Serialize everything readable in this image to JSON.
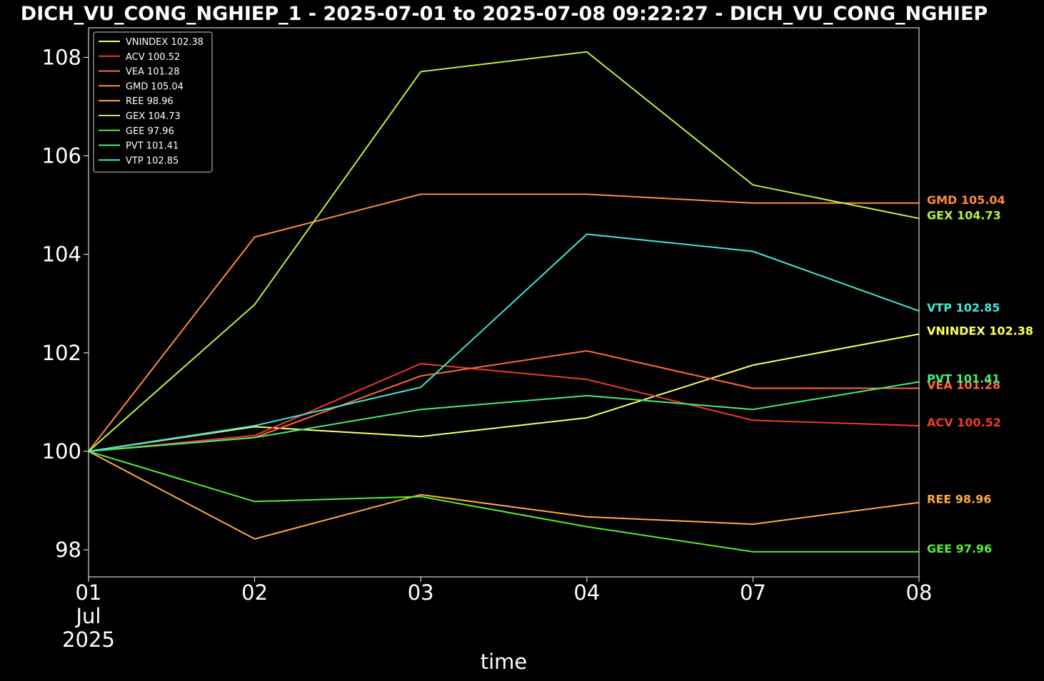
{
  "chart_data": {
    "type": "line",
    "title": "DICH_VU_CONG_NGHIEP_1 - 2025-07-01 to 2025-07-08 09:22:27 - DICH_VU_CONG_NGHIEP",
    "xlabel": "time",
    "ylabel": "",
    "x": [
      "2025-07-01",
      "2025-07-02",
      "2025-07-03",
      "2025-07-04",
      "2025-07-07",
      "2025-07-08"
    ],
    "x_tick_labels": [
      {
        "day": "01",
        "month": "Jul",
        "year": "2025"
      },
      {
        "day": "02"
      },
      {
        "day": "03"
      },
      {
        "day": "04"
      },
      {
        "day": "07"
      },
      {
        "day": "08"
      }
    ],
    "y_ticks": [
      "98",
      "100",
      "102",
      "104",
      "106",
      "108"
    ],
    "ylim": [
      97.45,
      108.6
    ],
    "grid": false,
    "legend_position": "top-left",
    "series": [
      {
        "name": "VNINDEX",
        "last_label": "VNINDEX 102.38",
        "color": "#ffff66",
        "values": [
          100.0,
          100.5,
          100.3,
          100.68,
          101.75,
          102.38
        ]
      },
      {
        "name": "ACV",
        "last_label": "ACV 100.52",
        "color": "#ee3a2a",
        "values": [
          100.0,
          100.32,
          101.78,
          101.46,
          100.63,
          100.52
        ]
      },
      {
        "name": "VEA",
        "last_label": "VEA 101.28",
        "color": "#ff6a3a",
        "values": [
          100.0,
          100.28,
          101.53,
          102.04,
          101.28,
          101.28
        ]
      },
      {
        "name": "GMD",
        "last_label": "GMD 105.04",
        "color": "#ff8c3a",
        "values": [
          100.0,
          104.35,
          105.22,
          105.22,
          105.04,
          105.04
        ]
      },
      {
        "name": "REE",
        "last_label": "REE 98.96",
        "color": "#ffaa44",
        "values": [
          100.0,
          98.22,
          99.12,
          98.67,
          98.52,
          98.96
        ]
      },
      {
        "name": "GEX",
        "last_label": "GEX 104.73",
        "color": "#b8f040",
        "values": [
          100.0,
          102.98,
          107.71,
          108.11,
          105.41,
          104.73
        ]
      },
      {
        "name": "GEE",
        "last_label": "GEE 97.96",
        "color": "#55ee33",
        "values": [
          100.0,
          98.98,
          99.08,
          98.47,
          97.96,
          97.96
        ]
      },
      {
        "name": "PVT",
        "last_label": "PVT 101.41",
        "color": "#44ee77",
        "values": [
          100.0,
          100.28,
          100.85,
          101.13,
          100.85,
          101.41
        ]
      },
      {
        "name": "VTP",
        "last_label": "VTP 102.85",
        "color": "#40e8d8",
        "values": [
          100.0,
          100.52,
          101.3,
          104.41,
          104.06,
          102.85
        ]
      }
    ]
  }
}
